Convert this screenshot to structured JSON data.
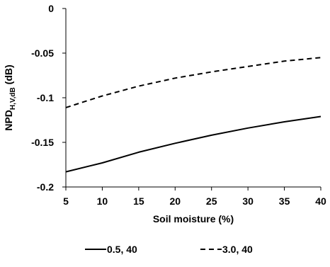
{
  "chart_data": {
    "type": "line",
    "title": "",
    "xlabel": "Soil moisture (%)",
    "ylabel": {
      "main": "NPD",
      "subscript": "H,V,dB",
      "suffix": " (dB)"
    },
    "xlim": [
      5,
      40
    ],
    "ylim": [
      -0.2,
      0
    ],
    "x_ticks": [
      5,
      10,
      15,
      20,
      25,
      30,
      35,
      40
    ],
    "x_tick_labels": [
      "5",
      "10",
      "15",
      "20",
      "25",
      "30",
      "35",
      "40"
    ],
    "y_ticks": [
      0,
      -0.05,
      -0.1,
      -0.15,
      -0.2
    ],
    "y_tick_labels": [
      "0",
      "-0.05",
      "-0.1",
      "-0.15",
      "-0.2"
    ],
    "grid": false,
    "legend_position": "bottom",
    "series": [
      {
        "name": "0.5, 40",
        "line_style": "solid",
        "color": "#000000",
        "x": [
          5,
          10,
          15,
          20,
          25,
          30,
          35,
          40
        ],
        "y": [
          -0.183,
          -0.173,
          -0.161,
          -0.151,
          -0.142,
          -0.134,
          -0.127,
          -0.121
        ]
      },
      {
        "name": "3.0, 40",
        "line_style": "dashed",
        "color": "#000000",
        "x": [
          5,
          10,
          15,
          20,
          25,
          30,
          35,
          40
        ],
        "y": [
          -0.111,
          -0.098,
          -0.087,
          -0.078,
          -0.071,
          -0.065,
          -0.059,
          -0.055
        ]
      }
    ]
  }
}
